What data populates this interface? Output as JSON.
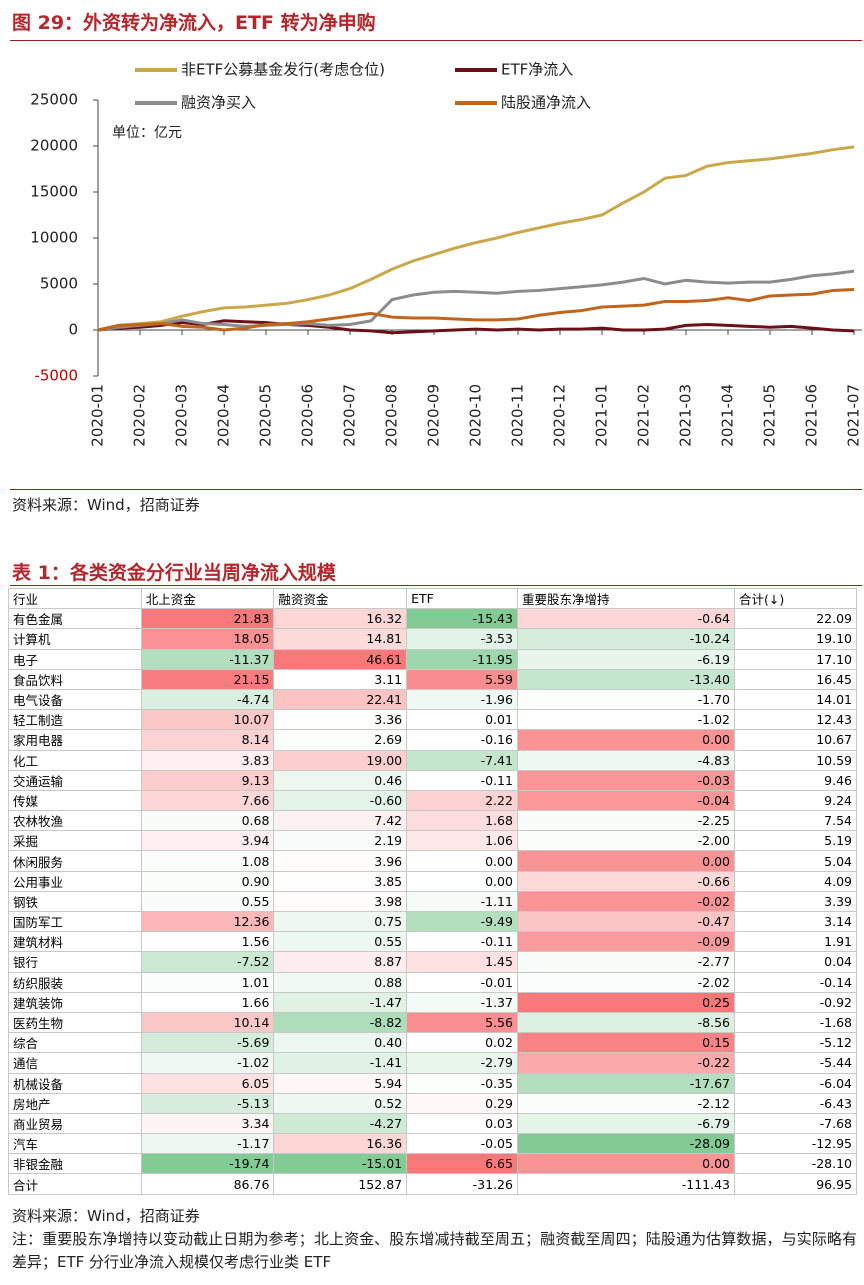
{
  "chart_data": {
    "type": "line",
    "title": "图 29：外资转为净流入，ETF 转为净申购",
    "annotation": "单位：亿元",
    "source": "资料来源：Wind，招商证券",
    "categories": [
      "2020-01",
      null,
      "2020-02",
      null,
      "2020-03",
      null,
      "2020-04",
      null,
      "2020-05",
      null,
      "2020-06",
      null,
      "2020-07",
      null,
      "2020-08",
      null,
      "2020-09",
      null,
      "2020-10",
      null,
      "2020-11",
      null,
      "2020-12",
      null,
      "2021-01",
      null,
      "2021-02",
      null,
      "2021-03",
      null,
      "2021-04",
      null,
      "2021-05",
      null,
      "2021-06",
      null,
      "2021-07"
    ],
    "ylim": [
      -5000,
      25000
    ],
    "yticks": [
      -5000,
      0,
      5000,
      10000,
      15000,
      20000,
      25000
    ],
    "grid": false,
    "series": [
      {
        "name": "非ETF公募基金发行(考虑仓位)",
        "color": "#c9a84c",
        "values": [
          0,
          500,
          700,
          900,
          1500,
          2000,
          2400,
          2500,
          2700,
          2900,
          3300,
          3800,
          4500,
          5500,
          6600,
          7500,
          8200,
          8900,
          9500,
          10000,
          10600,
          11100,
          11600,
          12000,
          12500,
          13800,
          15000,
          16500,
          16800,
          17800,
          18200,
          18400,
          18600,
          18900,
          19200,
          19600,
          19900
        ]
      },
      {
        "name": "ETF净流入",
        "color": "#6b1016",
        "values": [
          0,
          200,
          300,
          500,
          800,
          600,
          1000,
          900,
          800,
          600,
          500,
          300,
          0,
          -100,
          -300,
          -200,
          -100,
          0,
          100,
          0,
          100,
          0,
          100,
          100,
          200,
          0,
          0,
          100,
          500,
          600,
          500,
          400,
          300,
          400,
          200,
          0,
          -100
        ]
      },
      {
        "name": "融资净买入",
        "color": "#8c8c8c",
        "values": [
          0,
          300,
          500,
          700,
          1100,
          700,
          600,
          400,
          500,
          600,
          700,
          500,
          600,
          1000,
          3300,
          3800,
          4100,
          4200,
          4100,
          4000,
          4200,
          4300,
          4500,
          4700,
          4900,
          5200,
          5600,
          5000,
          5400,
          5200,
          5100,
          5200,
          5200,
          5500,
          5900,
          6100,
          6400
        ]
      },
      {
        "name": "陆股通净流入",
        "color": "#c0661c",
        "values": [
          0,
          500,
          600,
          700,
          400,
          300,
          0,
          200,
          600,
          700,
          900,
          1200,
          1500,
          1800,
          1400,
          1300,
          1300,
          1200,
          1100,
          1100,
          1200,
          1600,
          1900,
          2100,
          2500,
          2600,
          2700,
          3100,
          3100,
          3200,
          3500,
          3200,
          3700,
          3800,
          3900,
          4300,
          4400
        ]
      }
    ]
  },
  "table": {
    "title": "表 1：各类资金分行业当周净流入规模",
    "header": [
      "行业",
      "北上资金",
      "融资资金",
      "ETF",
      "重要股东净增持",
      "合计(↓)"
    ],
    "rows": [
      [
        "有色金属",
        "21.83",
        "16.32",
        "-15.43",
        "-0.64",
        "22.09"
      ],
      [
        "计算机",
        "18.05",
        "14.81",
        "-3.53",
        "-10.24",
        "19.10"
      ],
      [
        "电子",
        "-11.37",
        "46.61",
        "-11.95",
        "-6.19",
        "17.10"
      ],
      [
        "食品饮料",
        "21.15",
        "3.11",
        "5.59",
        "-13.40",
        "16.45"
      ],
      [
        "电气设备",
        "-4.74",
        "22.41",
        "-1.96",
        "-1.70",
        "14.01"
      ],
      [
        "轻工制造",
        "10.07",
        "3.36",
        "0.01",
        "-1.02",
        "12.43"
      ],
      [
        "家用电器",
        "8.14",
        "2.69",
        "-0.16",
        "0.00",
        "10.67"
      ],
      [
        "化工",
        "3.83",
        "19.00",
        "-7.41",
        "-4.83",
        "10.59"
      ],
      [
        "交通运输",
        "9.13",
        "0.46",
        "-0.11",
        "-0.03",
        "9.46"
      ],
      [
        "传媒",
        "7.66",
        "-0.60",
        "2.22",
        "-0.04",
        "9.24"
      ],
      [
        "农林牧渔",
        "0.68",
        "7.42",
        "1.68",
        "-2.25",
        "7.54"
      ],
      [
        "采掘",
        "3.94",
        "2.19",
        "1.06",
        "-2.00",
        "5.19"
      ],
      [
        "休闲服务",
        "1.08",
        "3.96",
        "0.00",
        "0.00",
        "5.04"
      ],
      [
        "公用事业",
        "0.90",
        "3.85",
        "0.00",
        "-0.66",
        "4.09"
      ],
      [
        "钢铁",
        "0.55",
        "3.98",
        "-1.11",
        "-0.02",
        "3.39"
      ],
      [
        "国防军工",
        "12.36",
        "0.75",
        "-9.49",
        "-0.47",
        "3.14"
      ],
      [
        "建筑材料",
        "1.56",
        "0.55",
        "-0.11",
        "-0.09",
        "1.91"
      ],
      [
        "银行",
        "-7.52",
        "8.87",
        "1.45",
        "-2.77",
        "0.04"
      ],
      [
        "纺织服装",
        "1.01",
        "0.88",
        "-0.01",
        "-2.02",
        "-0.14"
      ],
      [
        "建筑装饰",
        "1.66",
        "-1.47",
        "-1.37",
        "0.25",
        "-0.92"
      ],
      [
        "医药生物",
        "10.14",
        "-8.82",
        "5.56",
        "-8.56",
        "-1.68"
      ],
      [
        "综合",
        "-5.69",
        "0.40",
        "0.02",
        "0.15",
        "-5.12"
      ],
      [
        "通信",
        "-1.02",
        "-1.41",
        "-2.79",
        "-0.22",
        "-5.44"
      ],
      [
        "机械设备",
        "6.05",
        "5.94",
        "-0.35",
        "-17.67",
        "-6.04"
      ],
      [
        "房地产",
        "-5.13",
        "0.52",
        "0.29",
        "-2.12",
        "-6.43"
      ],
      [
        "商业贸易",
        "3.34",
        "-4.27",
        "0.03",
        "-6.79",
        "-7.68"
      ],
      [
        "汽车",
        "-1.17",
        "16.36",
        "-0.05",
        "-28.09",
        "-12.95"
      ],
      [
        "非银金融",
        "-19.74",
        "-15.01",
        "6.65",
        "0.00",
        "-28.10"
      ]
    ],
    "total": [
      "合计",
      "86.76",
      "152.87",
      "-31.26",
      "-111.43",
      "96.95"
    ],
    "source": "资料来源：Wind，招商证券",
    "note": "注：重要股东净增持以变动截止日期为参考；北上资金、股东增减持截至周五；融资截至周四；陆股通为估算数据，与实际略有差异；ETF 分行业净流入规模仅考虑行业类 ETF"
  }
}
